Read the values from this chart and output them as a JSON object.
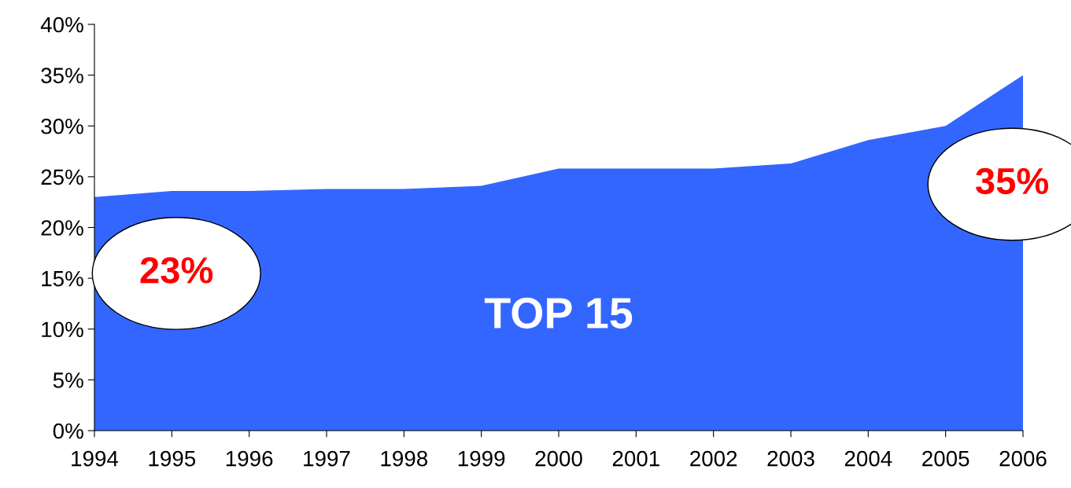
{
  "chart_data": {
    "type": "area",
    "x": [
      1994,
      1995,
      1996,
      1997,
      1998,
      1999,
      2000,
      2001,
      2002,
      2003,
      2004,
      2005,
      2006
    ],
    "series": [
      {
        "color": "#3366ff",
        "values": [
          23,
          23.6,
          23.6,
          23.8,
          23.8,
          24.1,
          25.8,
          25.8,
          25.8,
          26.3,
          28.6,
          30,
          35
        ]
      }
    ],
    "xlim": [
      1994,
      2006
    ],
    "xticks": [
      1994,
      1995,
      1996,
      1997,
      1998,
      1999,
      2000,
      2001,
      2002,
      2003,
      2004,
      2005,
      2006
    ],
    "ylim": [
      0,
      40
    ],
    "yticks": [
      {
        "value": 0,
        "label": "0%"
      },
      {
        "value": 5,
        "label": "5%"
      },
      {
        "value": 10,
        "label": "10%"
      },
      {
        "value": 15,
        "label": "15%"
      },
      {
        "value": 20,
        "label": "20%"
      },
      {
        "value": 25,
        "label": "25%"
      },
      {
        "value": 30,
        "label": "30%"
      },
      {
        "value": 35,
        "label": "35%"
      },
      {
        "value": 40,
        "label": "40%"
      }
    ],
    "grid": false,
    "legend": false,
    "annotations": [
      {
        "text": "23%",
        "x": 1994,
        "y": 23
      },
      {
        "text": "35%",
        "x": 2006,
        "y": 35
      },
      "TOP 15"
    ]
  }
}
